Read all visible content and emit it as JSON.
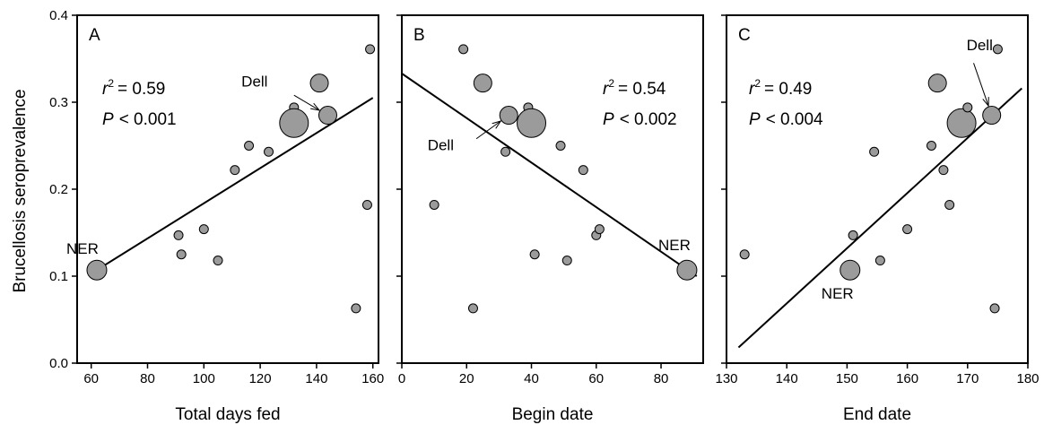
{
  "chart_data": [
    {
      "type": "scatter",
      "panel": "A",
      "xlabel": "Total days fed",
      "ylabel": "Brucellosis seroprevalence",
      "xlim": [
        55,
        162
      ],
      "ylim": [
        0.0,
        0.4
      ],
      "xticks": [
        60,
        80,
        100,
        120,
        140,
        160
      ],
      "yticks": [
        0.0,
        0.1,
        0.2,
        0.3,
        0.4
      ],
      "ytick_labels": [
        "0.0",
        "0.1",
        "0.2",
        "0.3",
        "0.4"
      ],
      "stats": {
        "r2_label": "r",
        "r2_sup": "2",
        "r2_value": "= 0.59",
        "p_label": "P",
        "p_value": "< 0.001"
      },
      "regression": {
        "x": [
          62,
          160
        ],
        "y": [
          0.107,
          0.305
        ]
      },
      "points": [
        {
          "x": 62,
          "y": 0.107,
          "size": "large"
        },
        {
          "x": 91,
          "y": 0.147,
          "size": "small"
        },
        {
          "x": 92,
          "y": 0.125,
          "size": "small"
        },
        {
          "x": 100,
          "y": 0.154,
          "size": "small"
        },
        {
          "x": 105,
          "y": 0.118,
          "size": "small"
        },
        {
          "x": 111,
          "y": 0.222,
          "size": "small"
        },
        {
          "x": 116,
          "y": 0.25,
          "size": "small"
        },
        {
          "x": 123,
          "y": 0.243,
          "size": "small"
        },
        {
          "x": 132,
          "y": 0.294,
          "size": "small"
        },
        {
          "x": 132,
          "y": 0.276,
          "size": "xlarge"
        },
        {
          "x": 141,
          "y": 0.322,
          "size": "medium"
        },
        {
          "x": 144,
          "y": 0.285,
          "size": "medium"
        },
        {
          "x": 154,
          "y": 0.063,
          "size": "small"
        },
        {
          "x": 158,
          "y": 0.182,
          "size": "small"
        },
        {
          "x": 159,
          "y": 0.361,
          "size": "small"
        }
      ],
      "annotations": [
        {
          "text": "NER",
          "x": 62,
          "y": 0.107,
          "arrow": false
        },
        {
          "text": "Dell",
          "x": 144,
          "y": 0.285,
          "arrow": true
        }
      ]
    },
    {
      "type": "scatter",
      "panel": "B",
      "xlabel": "Begin date",
      "xlim": [
        0,
        93
      ],
      "ylim": [
        0.0,
        0.4
      ],
      "xticks": [
        0,
        20,
        40,
        60,
        80
      ],
      "stats": {
        "r2_label": "r",
        "r2_sup": "2",
        "r2_value": "= 0.54",
        "p_label": "P",
        "p_value": "< 0.002"
      },
      "regression": {
        "x": [
          0,
          91
        ],
        "y": [
          0.333,
          0.1
        ]
      },
      "points": [
        {
          "x": 10,
          "y": 0.182,
          "size": "small"
        },
        {
          "x": 19,
          "y": 0.361,
          "size": "small"
        },
        {
          "x": 22,
          "y": 0.063,
          "size": "small"
        },
        {
          "x": 25,
          "y": 0.322,
          "size": "medium"
        },
        {
          "x": 32,
          "y": 0.243,
          "size": "small"
        },
        {
          "x": 33,
          "y": 0.285,
          "size": "medium"
        },
        {
          "x": 39,
          "y": 0.294,
          "size": "small"
        },
        {
          "x": 40,
          "y": 0.276,
          "size": "xlarge"
        },
        {
          "x": 41,
          "y": 0.125,
          "size": "small"
        },
        {
          "x": 49,
          "y": 0.25,
          "size": "small"
        },
        {
          "x": 51,
          "y": 0.118,
          "size": "small"
        },
        {
          "x": 56,
          "y": 0.222,
          "size": "small"
        },
        {
          "x": 60,
          "y": 0.147,
          "size": "small"
        },
        {
          "x": 61,
          "y": 0.154,
          "size": "small"
        },
        {
          "x": 88,
          "y": 0.107,
          "size": "large"
        }
      ],
      "annotations": [
        {
          "text": "Dell",
          "x": 33,
          "y": 0.285,
          "arrow": true
        },
        {
          "text": "NER",
          "x": 88,
          "y": 0.107,
          "arrow": false
        }
      ]
    },
    {
      "type": "scatter",
      "panel": "C",
      "xlabel": "End date",
      "xlim": [
        130,
        180
      ],
      "ylim": [
        0.0,
        0.4
      ],
      "xticks": [
        130,
        140,
        150,
        160,
        170,
        180
      ],
      "stats": {
        "r2_label": "r",
        "r2_sup": "2",
        "r2_value": "= 0.49",
        "p_label": "P",
        "p_value": "< 0.004"
      },
      "regression": {
        "x": [
          132,
          179
        ],
        "y": [
          0.018,
          0.316
        ]
      },
      "points": [
        {
          "x": 133,
          "y": 0.125,
          "size": "small"
        },
        {
          "x": 150.5,
          "y": 0.107,
          "size": "large"
        },
        {
          "x": 151,
          "y": 0.147,
          "size": "small"
        },
        {
          "x": 154.5,
          "y": 0.243,
          "size": "small"
        },
        {
          "x": 155.5,
          "y": 0.118,
          "size": "small"
        },
        {
          "x": 160,
          "y": 0.154,
          "size": "small"
        },
        {
          "x": 164,
          "y": 0.25,
          "size": "small"
        },
        {
          "x": 165,
          "y": 0.322,
          "size": "medium"
        },
        {
          "x": 166,
          "y": 0.222,
          "size": "small"
        },
        {
          "x": 167,
          "y": 0.182,
          "size": "small"
        },
        {
          "x": 169,
          "y": 0.276,
          "size": "xlarge"
        },
        {
          "x": 170,
          "y": 0.294,
          "size": "small"
        },
        {
          "x": 174,
          "y": 0.285,
          "size": "medium"
        },
        {
          "x": 174.5,
          "y": 0.063,
          "size": "small"
        },
        {
          "x": 175,
          "y": 0.361,
          "size": "small"
        }
      ],
      "annotations": [
        {
          "text": "Dell",
          "x": 174,
          "y": 0.285,
          "arrow": true
        },
        {
          "text": "NER",
          "x": 150.5,
          "y": 0.107,
          "arrow": false
        }
      ]
    }
  ],
  "colors": {
    "point_fill": "#9b9b9b",
    "point_stroke": "#000000",
    "line": "#000000"
  }
}
